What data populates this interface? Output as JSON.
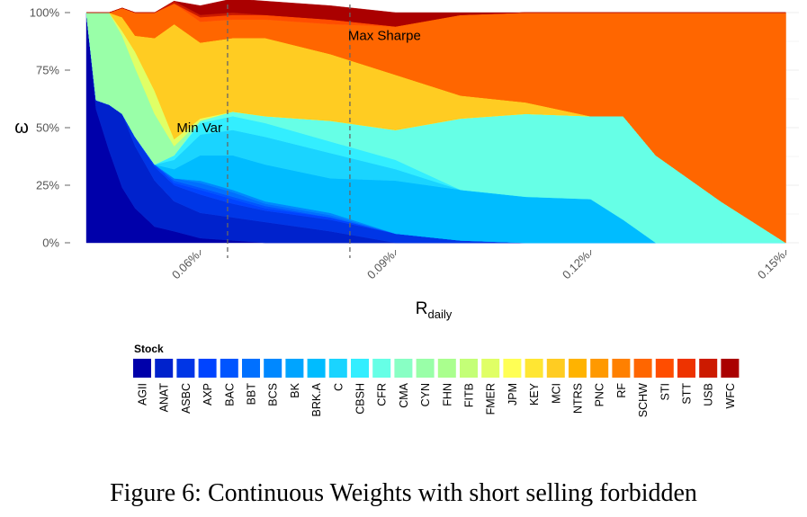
{
  "chart_data": {
    "type": "area",
    "stacked_percent": true,
    "xlabel_main": "R",
    "xlabel_sub": "daily",
    "ylabel": "ω",
    "x_ticks": [
      0.0006,
      0.0009,
      0.0012,
      0.0015
    ],
    "x_tick_labels": [
      "0.06%",
      "0.09%",
      "0.12%",
      "0.15%"
    ],
    "xlim": [
      0.000425,
      0.00152
    ],
    "y_ticks": [
      0,
      0.25,
      0.5,
      0.75,
      1.0
    ],
    "y_tick_labels": [
      "0%",
      "25%",
      "50%",
      "75%",
      "100%"
    ],
    "ylim": [
      0,
      1
    ],
    "grid": true,
    "legend_title": "Stock",
    "legend_position": "bottom",
    "vlines": [
      {
        "x": 0.000642,
        "label": "Min Var"
      },
      {
        "x": 0.00083,
        "label": "Max Sharpe"
      }
    ],
    "x": [
      0.000425,
      0.00044,
      0.00046,
      0.00048,
      0.0005,
      0.00053,
      0.00056,
      0.0006,
      0.00065,
      0.0007,
      0.0008,
      0.0009,
      0.001,
      0.0011,
      0.0012,
      0.00125,
      0.0013,
      0.0014,
      0.0015
    ],
    "series": [
      {
        "name": "AGII",
        "values": [
          1.0,
          0.58,
          0.4,
          0.24,
          0.15,
          0.07,
          0.05,
          0.02,
          0.01,
          0.0,
          0.0,
          0.0,
          0.0,
          0.0,
          0.0,
          0.0,
          0.0,
          0.0,
          0.0
        ]
      },
      {
        "name": "ANAT",
        "values": [
          0.0,
          0.04,
          0.2,
          0.32,
          0.27,
          0.2,
          0.13,
          0.11,
          0.1,
          0.09,
          0.05,
          0.0,
          0.0,
          0.0,
          0.0,
          0.0,
          0.0,
          0.0,
          0.0
        ]
      },
      {
        "name": "ASBC",
        "values": [
          0.0,
          0.0,
          0.0,
          0.0,
          0.04,
          0.06,
          0.07,
          0.08,
          0.06,
          0.05,
          0.05,
          0.04,
          0.01,
          0.0,
          0.0,
          0.0,
          0.0,
          0.0,
          0.0
        ]
      },
      {
        "name": "AXP",
        "values": [
          0.0,
          0.0,
          0.0,
          0.0,
          0.0,
          0.01,
          0.01,
          0.02,
          0.02,
          0.01,
          0.01,
          0.0,
          0.0,
          0.0,
          0.0,
          0.0,
          0.0,
          0.0,
          0.0
        ]
      },
      {
        "name": "BAC",
        "values": [
          0.0,
          0.0,
          0.0,
          0.0,
          0.0,
          0.0,
          0.01,
          0.01,
          0.01,
          0.01,
          0.0,
          0.0,
          0.0,
          0.0,
          0.0,
          0.0,
          0.0,
          0.0,
          0.0
        ]
      },
      {
        "name": "BBT",
        "values": [
          0.0,
          0.0,
          0.0,
          0.0,
          0.0,
          0.0,
          0.01,
          0.02,
          0.02,
          0.01,
          0.01,
          0.0,
          0.0,
          0.0,
          0.0,
          0.0,
          0.0,
          0.0,
          0.0
        ]
      },
      {
        "name": "BCS",
        "values": [
          0.0,
          0.0,
          0.0,
          0.0,
          0.0,
          0.0,
          0.0,
          0.01,
          0.01,
          0.01,
          0.01,
          0.0,
          0.0,
          0.0,
          0.0,
          0.0,
          0.0,
          0.0,
          0.0
        ]
      },
      {
        "name": "BK",
        "values": [
          0.0,
          0.0,
          0.0,
          0.0,
          0.0,
          0.0,
          0.0,
          0.0,
          0.0,
          0.0,
          0.0,
          0.0,
          0.0,
          0.0,
          0.0,
          0.0,
          0.0,
          0.0,
          0.0
        ]
      },
      {
        "name": "BRK.A",
        "values": [
          0.0,
          0.0,
          0.0,
          0.0,
          0.0,
          0.0,
          0.04,
          0.11,
          0.15,
          0.16,
          0.15,
          0.23,
          0.22,
          0.2,
          0.19,
          0.1,
          0.0,
          0.0,
          0.0
        ]
      },
      {
        "name": "C",
        "values": [
          0.0,
          0.0,
          0.0,
          0.0,
          0.0,
          0.0,
          0.04,
          0.09,
          0.11,
          0.12,
          0.11,
          0.05,
          0.0,
          0.0,
          0.0,
          0.0,
          0.0,
          0.0,
          0.0
        ]
      },
      {
        "name": "CBSH",
        "values": [
          0.0,
          0.0,
          0.0,
          0.0,
          0.0,
          0.0,
          0.02,
          0.05,
          0.06,
          0.06,
          0.05,
          0.04,
          0.0,
          0.0,
          0.0,
          0.0,
          0.0,
          0.0,
          0.0
        ]
      },
      {
        "name": "CFR",
        "values": [
          0.0,
          0.0,
          0.0,
          0.0,
          0.0,
          0.0,
          0.0,
          0.01,
          0.02,
          0.03,
          0.09,
          0.13,
          0.31,
          0.36,
          0.36,
          0.45,
          0.38,
          0.18,
          0.0
        ]
      },
      {
        "name": "CMA",
        "values": [
          0.0,
          0.0,
          0.0,
          0.0,
          0.0,
          0.0,
          0.0,
          0.0,
          0.0,
          0.0,
          0.0,
          0.0,
          0.0,
          0.0,
          0.0,
          0.0,
          0.0,
          0.0,
          0.0
        ]
      },
      {
        "name": "CYN",
        "values": [
          0.0,
          0.38,
          0.4,
          0.34,
          0.3,
          0.22,
          0.04,
          0.0,
          0.0,
          0.0,
          0.0,
          0.0,
          0.0,
          0.0,
          0.0,
          0.0,
          0.0,
          0.0,
          0.0
        ]
      },
      {
        "name": "FHN",
        "values": [
          0.0,
          0.0,
          0.0,
          0.0,
          0.0,
          0.0,
          0.0,
          0.0,
          0.0,
          0.0,
          0.0,
          0.0,
          0.0,
          0.0,
          0.0,
          0.0,
          0.0,
          0.0,
          0.0
        ]
      },
      {
        "name": "FITB",
        "values": [
          0.0,
          0.0,
          0.0,
          0.0,
          0.0,
          0.0,
          0.0,
          0.0,
          0.0,
          0.0,
          0.0,
          0.0,
          0.0,
          0.0,
          0.0,
          0.0,
          0.0,
          0.0,
          0.0
        ]
      },
      {
        "name": "FMER",
        "values": [
          0.0,
          0.0,
          0.0,
          0.02,
          0.07,
          0.1,
          0.03,
          0.01,
          0.0,
          0.0,
          0.0,
          0.0,
          0.0,
          0.0,
          0.0,
          0.0,
          0.0,
          0.0,
          0.0
        ]
      },
      {
        "name": "JPM",
        "values": [
          0.0,
          0.0,
          0.0,
          0.0,
          0.0,
          0.0,
          0.0,
          0.0,
          0.0,
          0.0,
          0.0,
          0.0,
          0.0,
          0.0,
          0.0,
          0.0,
          0.0,
          0.0,
          0.0
        ]
      },
      {
        "name": "KEY",
        "values": [
          0.0,
          0.0,
          0.0,
          0.0,
          0.0,
          0.0,
          0.0,
          0.0,
          0.0,
          0.0,
          0.0,
          0.0,
          0.0,
          0.0,
          0.0,
          0.0,
          0.0,
          0.0,
          0.0
        ]
      },
      {
        "name": "MCI",
        "values": [
          0.0,
          0.0,
          0.0,
          0.06,
          0.07,
          0.23,
          0.5,
          0.33,
          0.32,
          0.34,
          0.29,
          0.24,
          0.1,
          0.05,
          0.0,
          0.0,
          0.0,
          0.0,
          0.0
        ]
      },
      {
        "name": "NTRS",
        "values": [
          0.0,
          0.0,
          0.0,
          0.0,
          0.0,
          0.0,
          0.0,
          0.0,
          0.0,
          0.0,
          0.0,
          0.0,
          0.0,
          0.0,
          0.0,
          0.0,
          0.0,
          0.0,
          0.0
        ]
      },
      {
        "name": "PNC",
        "values": [
          0.0,
          0.0,
          0.0,
          0.0,
          0.0,
          0.0,
          0.0,
          0.0,
          0.0,
          0.0,
          0.0,
          0.0,
          0.0,
          0.0,
          0.0,
          0.0,
          0.0,
          0.0,
          0.0
        ]
      },
      {
        "name": "RF",
        "values": [
          0.0,
          0.0,
          0.0,
          0.0,
          0.0,
          0.0,
          0.0,
          0.0,
          0.0,
          0.0,
          0.0,
          0.0,
          0.0,
          0.0,
          0.0,
          0.0,
          0.0,
          0.0,
          0.0
        ]
      },
      {
        "name": "SCHW",
        "values": [
          0.0,
          0.0,
          0.0,
          0.04,
          0.1,
          0.11,
          0.09,
          0.09,
          0.08,
          0.08,
          0.13,
          0.21,
          0.35,
          0.39,
          0.45,
          0.45,
          0.62,
          0.82,
          1.0
        ]
      },
      {
        "name": "STI",
        "values": [
          0.0,
          0.0,
          0.0,
          0.0,
          0.0,
          0.0,
          0.0,
          0.02,
          0.02,
          0.02,
          0.02,
          0.0,
          0.0,
          0.0,
          0.0,
          0.0,
          0.0,
          0.0,
          0.0
        ]
      },
      {
        "name": "STT",
        "values": [
          0.0,
          0.0,
          0.0,
          0.0,
          0.0,
          0.0,
          0.0,
          0.0,
          0.0,
          0.0,
          0.0,
          0.0,
          0.0,
          0.0,
          0.0,
          0.0,
          0.0,
          0.0,
          0.0
        ]
      },
      {
        "name": "USB",
        "values": [
          0.0,
          0.0,
          0.0,
          0.0,
          0.0,
          0.0,
          0.01,
          0.01,
          0.01,
          0.0,
          0.0,
          0.0,
          0.0,
          0.0,
          0.0,
          0.0,
          0.0,
          0.0,
          0.0
        ]
      },
      {
        "name": "WFC",
        "values": [
          0.0,
          0.0,
          0.0,
          0.0,
          0.0,
          0.0,
          0.0,
          0.04,
          0.06,
          0.06,
          0.06,
          0.06,
          0.01,
          0.0,
          0.0,
          0.0,
          0.0,
          0.0,
          0.0
        ]
      }
    ],
    "colors": [
      "#0000aa",
      "#0022cc",
      "#0036e6",
      "#0044ff",
      "#0055ff",
      "#0070ff",
      "#0088ff",
      "#00a4ff",
      "#00bcff",
      "#1ad4ff",
      "#33eeff",
      "#66ffe6",
      "#88ffc4",
      "#99ffa8",
      "#aaff8e",
      "#c4ff77",
      "#e0ff66",
      "#ffff55",
      "#ffe633",
      "#ffcc22",
      "#ffb300",
      "#ff9900",
      "#ff8000",
      "#ff6600",
      "#ff4d00",
      "#ee3300",
      "#cc1a00",
      "#aa0000"
    ]
  },
  "caption": "Figure 6: Continuous Weights with short selling forbidden"
}
